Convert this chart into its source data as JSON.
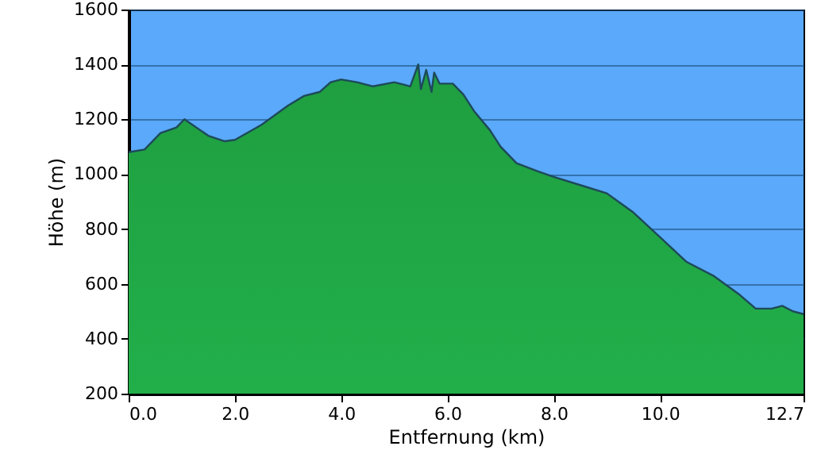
{
  "chart_data": {
    "type": "area",
    "xlabel": "Entfernung   (km)",
    "ylabel": "Höhe (m)",
    "x": [
      0,
      0.3,
      0.6,
      0.9,
      1.05,
      1.2,
      1.5,
      1.8,
      2.0,
      2.5,
      3.0,
      3.3,
      3.6,
      3.8,
      4.0,
      4.3,
      4.6,
      5.0,
      5.3,
      5.45,
      5.5,
      5.6,
      5.7,
      5.75,
      5.85,
      6.1,
      6.3,
      6.5,
      6.8,
      7.0,
      7.3,
      7.7,
      8.0,
      8.5,
      9.0,
      9.5,
      10.0,
      10.5,
      11.0,
      11.5,
      11.8,
      12.1,
      12.3,
      12.5,
      12.7
    ],
    "series": [
      {
        "color": "#1f9e40",
        "values": [
          1080,
          1090,
          1150,
          1170,
          1200,
          1180,
          1140,
          1120,
          1125,
          1180,
          1250,
          1285,
          1300,
          1335,
          1345,
          1335,
          1320,
          1335,
          1320,
          1400,
          1310,
          1380,
          1300,
          1370,
          1330,
          1330,
          1290,
          1230,
          1160,
          1100,
          1040,
          1010,
          990,
          960,
          930,
          860,
          770,
          680,
          630,
          560,
          510,
          510,
          520,
          500,
          490
        ]
      }
    ],
    "xlim": [
      0,
      12.7
    ],
    "ylim": [
      200,
      1600
    ],
    "xticks": [
      {
        "value": 0,
        "label": "0.0"
      },
      {
        "value": 2,
        "label": "2.0"
      },
      {
        "value": 4,
        "label": "4.0"
      },
      {
        "value": 6,
        "label": "6.0"
      },
      {
        "value": 8,
        "label": "8.0"
      },
      {
        "value": 10,
        "label": "10.0"
      },
      {
        "value": 12.7,
        "label": "12.7"
      }
    ],
    "yticks": [
      200,
      400,
      600,
      800,
      1000,
      1200,
      1400,
      1600
    ],
    "grid": "y"
  }
}
